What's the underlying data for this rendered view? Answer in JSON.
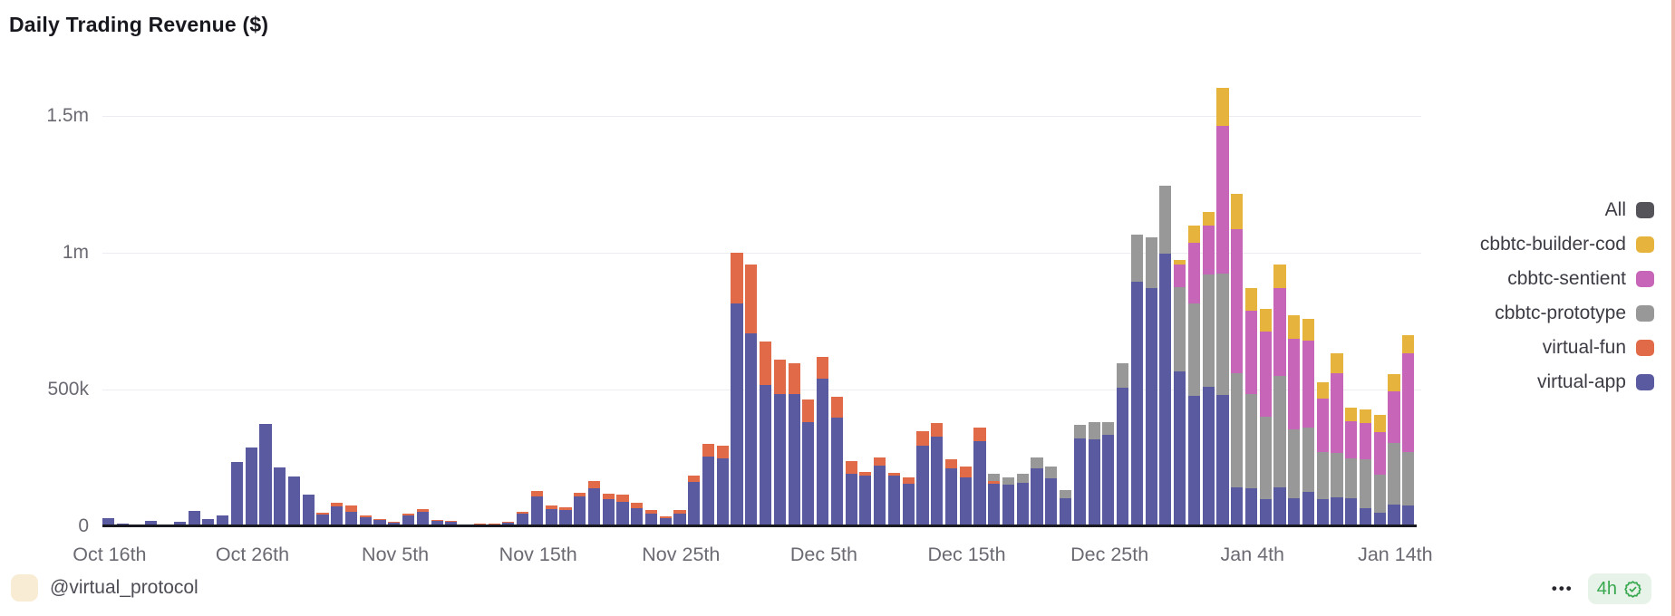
{
  "title": "Daily Trading Revenue ($)",
  "colors": {
    "background": "#ffffff",
    "edge_strip": "#efb6ab",
    "gridline": "#ececf1",
    "axis_baseline": "#191922",
    "axis_text": "#6a6a72",
    "legend_text": "#3c3c44",
    "all_swatch": "#55545a",
    "badge_bg": "#e7f3e8",
    "badge_green": "#37a84e",
    "avatar_bg": "#f8ecd4"
  },
  "legend": [
    {
      "label": "All",
      "color": "#55545a"
    },
    {
      "label": "cbbtc-builder-cod",
      "color": "#e6b33d"
    },
    {
      "label": "cbbtc-sentient",
      "color": "#c765b8"
    },
    {
      "label": "cbbtc-prototype",
      "color": "#999899"
    },
    {
      "label": "virtual-fun",
      "color": "#e16a48"
    },
    {
      "label": "virtual-app",
      "color": "#5a5aa0"
    }
  ],
  "footer": {
    "handle": "@virtual_protocol",
    "menu_dots": "•••",
    "badge_text": "4h"
  },
  "chart_data": {
    "type": "bar",
    "stacked": true,
    "title": "Daily Trading Revenue ($)",
    "unit": "USD thousands",
    "ylim_k": [
      0,
      1620
    ],
    "grid": "horizontal",
    "legend_position": "right",
    "y_ticks": [
      {
        "label": "0",
        "value_k": 0
      },
      {
        "label": "500k",
        "value_k": 500
      },
      {
        "label": "1m",
        "value_k": 1000
      },
      {
        "label": "1.5m",
        "value_k": 1500
      }
    ],
    "x_ticks": [
      {
        "label": "Oct 16th",
        "index": 0
      },
      {
        "label": "Oct 26th",
        "index": 10
      },
      {
        "label": "Nov 5th",
        "index": 20
      },
      {
        "label": "Nov 15th",
        "index": 30
      },
      {
        "label": "Nov 25th",
        "index": 40
      },
      {
        "label": "Dec 5th",
        "index": 50
      },
      {
        "label": "Dec 15th",
        "index": 60
      },
      {
        "label": "Dec 25th",
        "index": 70
      },
      {
        "label": "Jan 4th",
        "index": 80
      },
      {
        "label": "Jan 14th",
        "index": 90
      }
    ],
    "dates": [
      "Oct 16",
      "Oct 17",
      "Oct 18",
      "Oct 19",
      "Oct 20",
      "Oct 21",
      "Oct 22",
      "Oct 23",
      "Oct 24",
      "Oct 25",
      "Oct 26",
      "Oct 27",
      "Oct 28",
      "Oct 29",
      "Oct 30",
      "Oct 31",
      "Nov 1",
      "Nov 2",
      "Nov 3",
      "Nov 4",
      "Nov 5",
      "Nov 6",
      "Nov 7",
      "Nov 8",
      "Nov 9",
      "Nov 10",
      "Nov 11",
      "Nov 12",
      "Nov 13",
      "Nov 14",
      "Nov 15",
      "Nov 16",
      "Nov 17",
      "Nov 18",
      "Nov 19",
      "Nov 20",
      "Nov 21",
      "Nov 22",
      "Nov 23",
      "Nov 24",
      "Nov 25",
      "Nov 26",
      "Nov 27",
      "Nov 28",
      "Nov 29",
      "Nov 30",
      "Dec 1",
      "Dec 2",
      "Dec 3",
      "Dec 4",
      "Dec 5",
      "Dec 6",
      "Dec 7",
      "Dec 8",
      "Dec 9",
      "Dec 10",
      "Dec 11",
      "Dec 12",
      "Dec 13",
      "Dec 14",
      "Dec 15",
      "Dec 16",
      "Dec 17",
      "Dec 18",
      "Dec 19",
      "Dec 20",
      "Dec 21",
      "Dec 22",
      "Dec 23",
      "Dec 24",
      "Dec 25",
      "Dec 26",
      "Dec 27",
      "Dec 28",
      "Dec 29",
      "Dec 30",
      "Dec 31",
      "Jan 1",
      "Jan 2",
      "Jan 3",
      "Jan 4",
      "Jan 5",
      "Jan 6",
      "Jan 7",
      "Jan 8",
      "Jan 9",
      "Jan 10",
      "Jan 11",
      "Jan 12",
      "Jan 13",
      "Jan 14",
      "Jan 15"
    ],
    "series": [
      {
        "name": "virtual-app",
        "color": "#5a5aa0",
        "values_k": [
          29,
          9,
          4,
          21,
          5,
          16,
          55,
          27,
          41,
          236,
          289,
          375,
          214,
          182,
          116,
          44,
          73,
          54,
          33,
          22,
          14,
          40,
          54,
          21,
          16,
          5,
          8,
          8,
          14,
          48,
          110,
          63,
          58,
          108,
          138,
          98,
          88,
          65,
          48,
          29,
          48,
          161,
          255,
          250,
          815,
          706,
          516,
          484,
          484,
          382,
          540,
          396,
          191,
          185,
          221,
          184,
          155,
          294,
          327,
          211,
          178,
          310,
          156,
          153,
          158,
          213,
          174,
          104,
          322,
          317,
          333,
          508,
          895,
          870,
          997,
          567,
          476,
          509,
          481,
          144,
          139,
          98,
          144,
          103,
          126,
          100,
          106,
          103,
          67,
          50,
          78,
          76
        ]
      },
      {
        "name": "virtual-fun",
        "color": "#e16a48",
        "values_k": [
          0,
          0,
          0,
          0,
          0,
          0,
          0,
          0,
          0,
          0,
          0,
          0,
          0,
          0,
          0,
          6,
          13,
          21,
          8,
          5,
          2,
          8,
          10,
          3,
          3,
          1,
          1,
          1,
          2,
          6,
          19,
          12,
          12,
          15,
          27,
          22,
          27,
          22,
          12,
          9,
          12,
          25,
          45,
          45,
          185,
          251,
          158,
          125,
          113,
          81,
          80,
          77,
          46,
          15,
          30,
          12,
          25,
          55,
          50,
          35,
          40,
          50,
          8,
          0,
          0,
          0,
          0,
          0,
          0,
          0,
          0,
          0,
          0,
          0,
          0,
          0,
          0,
          0,
          0,
          0,
          0,
          0,
          0,
          0,
          0,
          0,
          0,
          0,
          0,
          0,
          0,
          0
        ]
      },
      {
        "name": "cbbtc-prototype",
        "color": "#999899",
        "values_k": [
          0,
          0,
          0,
          0,
          0,
          0,
          0,
          0,
          0,
          0,
          0,
          0,
          0,
          0,
          0,
          0,
          0,
          0,
          0,
          0,
          0,
          0,
          0,
          0,
          0,
          0,
          0,
          0,
          0,
          0,
          0,
          0,
          0,
          0,
          0,
          0,
          0,
          0,
          0,
          0,
          0,
          0,
          0,
          0,
          0,
          0,
          0,
          0,
          0,
          0,
          0,
          0,
          0,
          0,
          0,
          0,
          0,
          0,
          0,
          0,
          0,
          0,
          27,
          27,
          33,
          38,
          44,
          27,
          49,
          65,
          49,
          87,
          170,
          186,
          247,
          306,
          339,
          411,
          444,
          417,
          344,
          302,
          406,
          250,
          236,
          172,
          161,
          147,
          178,
          139,
          228,
          194
        ]
      },
      {
        "name": "cbbtc-sentient",
        "color": "#c765b8",
        "values_k": [
          0,
          0,
          0,
          0,
          0,
          0,
          0,
          0,
          0,
          0,
          0,
          0,
          0,
          0,
          0,
          0,
          0,
          0,
          0,
          0,
          0,
          0,
          0,
          0,
          0,
          0,
          0,
          0,
          0,
          0,
          0,
          0,
          0,
          0,
          0,
          0,
          0,
          0,
          0,
          0,
          0,
          0,
          0,
          0,
          0,
          0,
          0,
          0,
          0,
          0,
          0,
          0,
          0,
          0,
          0,
          0,
          0,
          0,
          0,
          0,
          0,
          0,
          0,
          0,
          0,
          0,
          0,
          0,
          0,
          0,
          0,
          0,
          0,
          0,
          0,
          83,
          222,
          178,
          539,
          526,
          306,
          311,
          320,
          333,
          317,
          194,
          294,
          133,
          133,
          156,
          189,
          361
        ]
      },
      {
        "name": "cbbtc-builder-cod",
        "color": "#e6b33d",
        "values_k": [
          0,
          0,
          0,
          0,
          0,
          0,
          0,
          0,
          0,
          0,
          0,
          0,
          0,
          0,
          0,
          0,
          0,
          0,
          0,
          0,
          0,
          0,
          0,
          0,
          0,
          0,
          0,
          0,
          0,
          0,
          0,
          0,
          0,
          0,
          0,
          0,
          0,
          0,
          0,
          0,
          0,
          0,
          0,
          0,
          0,
          0,
          0,
          0,
          0,
          0,
          0,
          0,
          0,
          0,
          0,
          0,
          0,
          0,
          0,
          0,
          0,
          0,
          0,
          0,
          0,
          0,
          0,
          0,
          0,
          0,
          0,
          0,
          0,
          0,
          0,
          19,
          63,
          50,
          139,
          130,
          81,
          83,
          86,
          86,
          81,
          61,
          72,
          50,
          50,
          61,
          61,
          69
        ]
      }
    ]
  }
}
